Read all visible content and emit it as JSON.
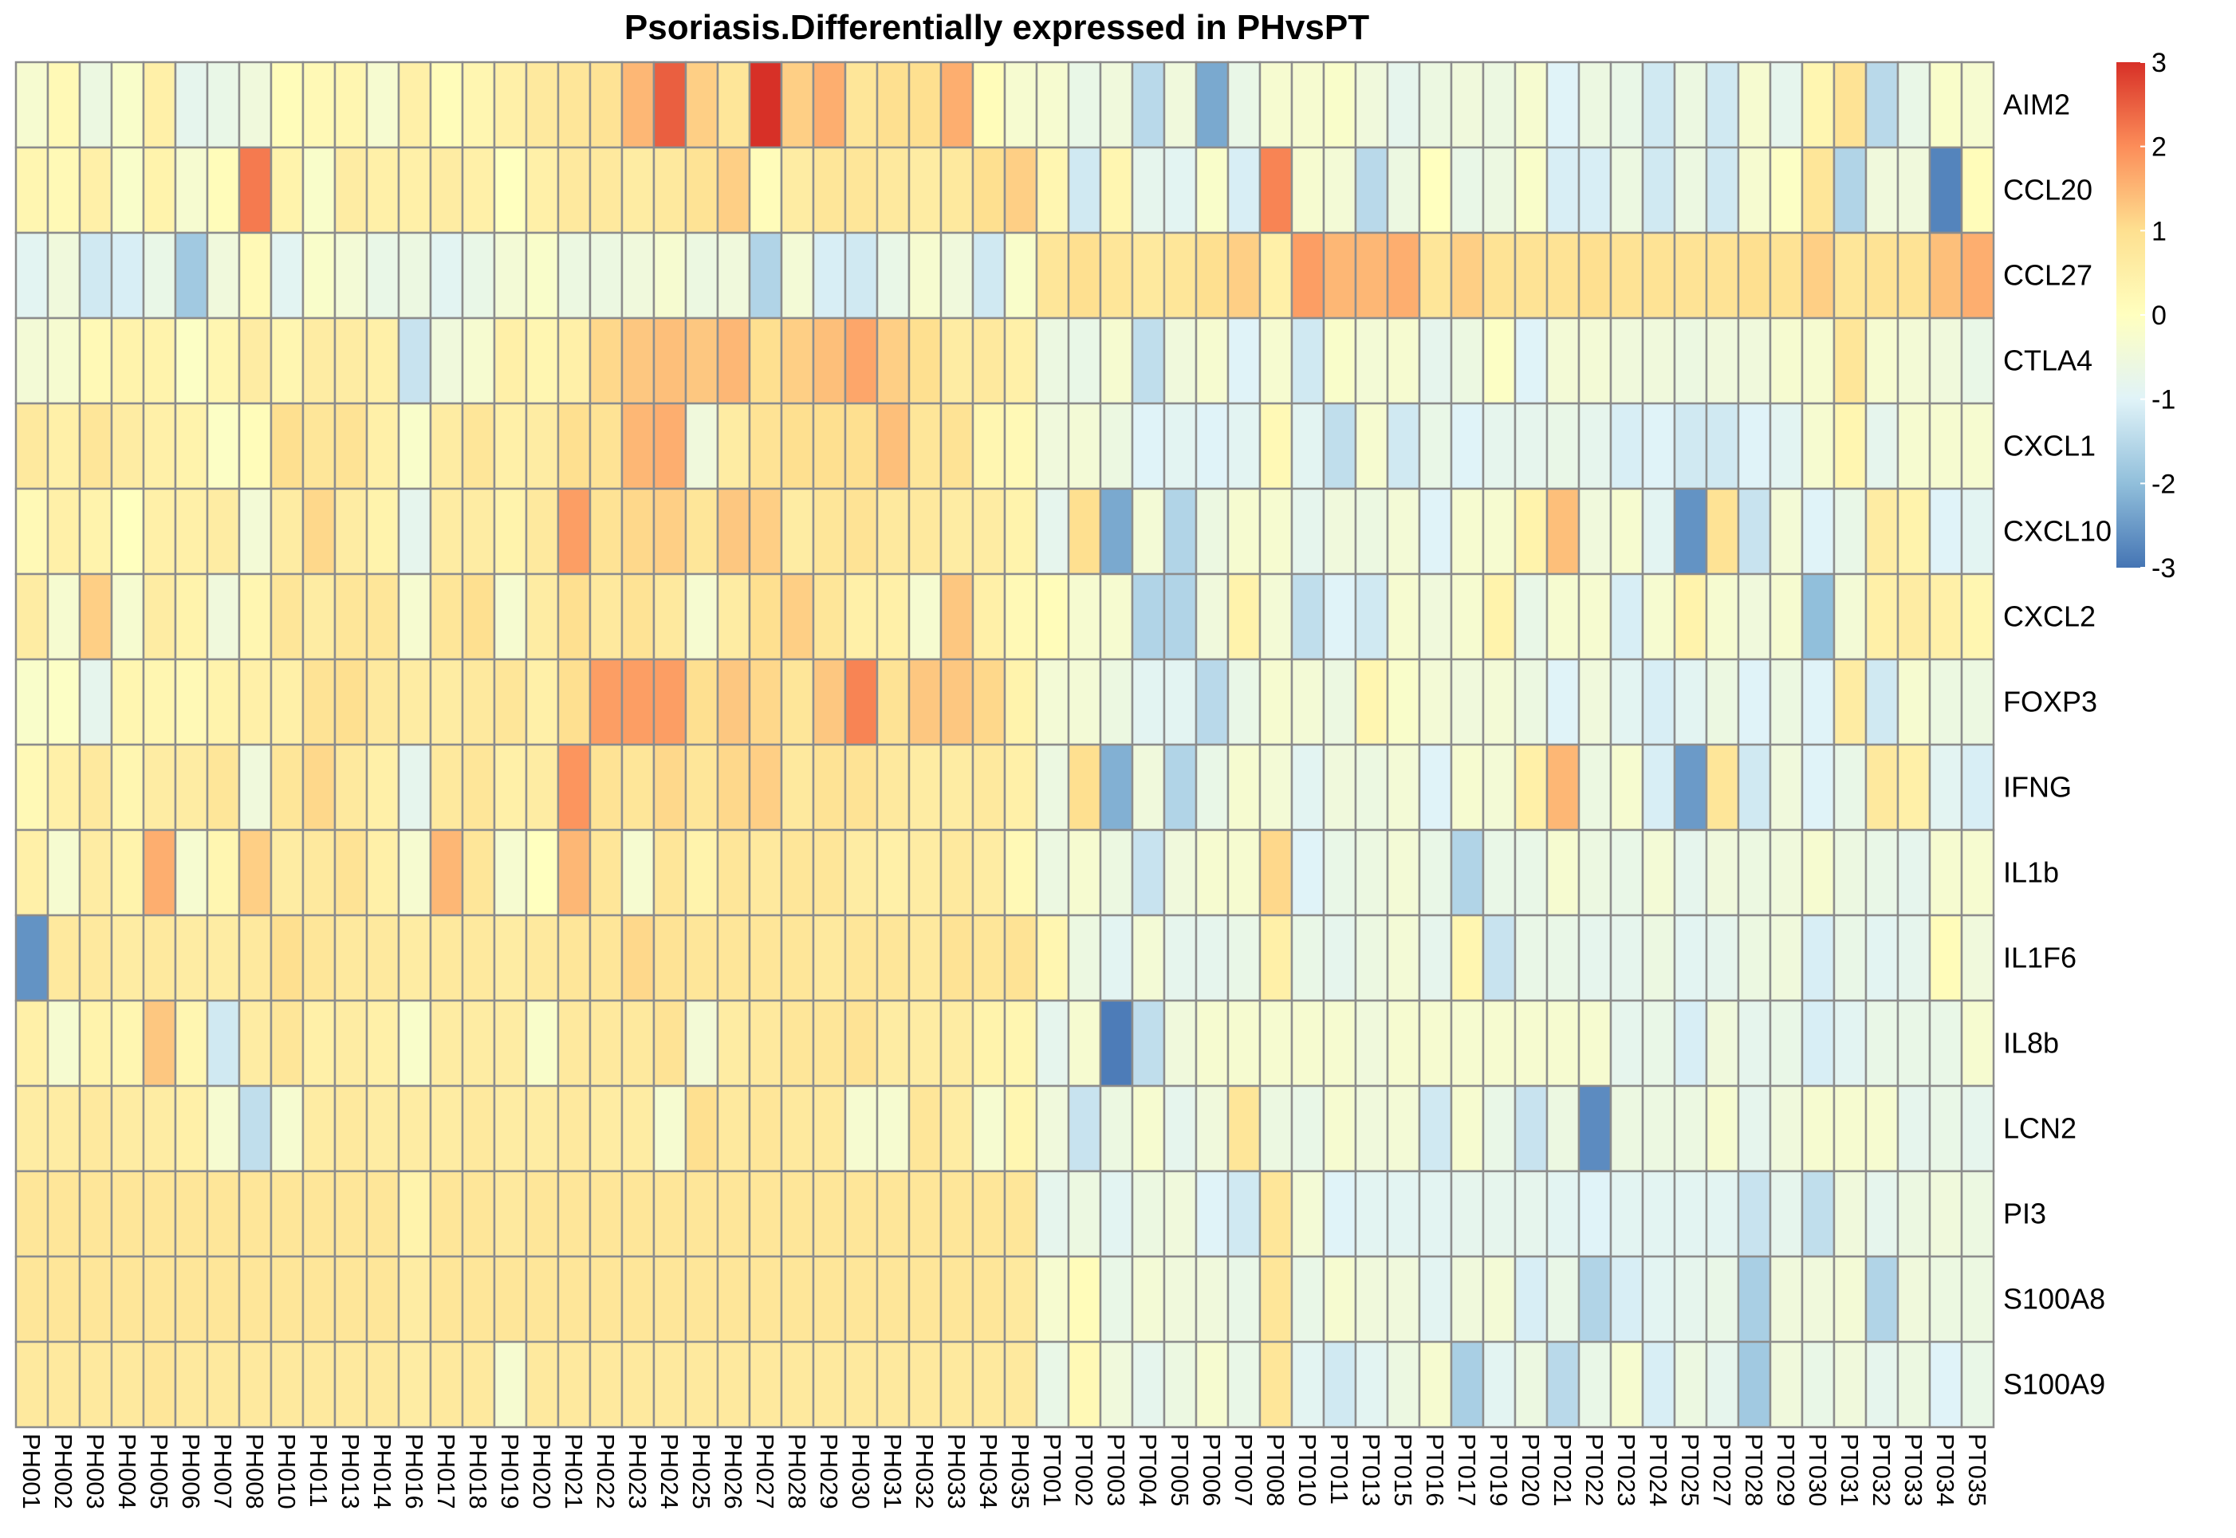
{
  "chart_data": {
    "type": "heatmap",
    "title": "Psoriasis.Differentially expressed in PHvsPT",
    "rows": [
      "AIM2",
      "CCL20",
      "CCL27",
      "CTLA4",
      "CXCL1",
      "CXCL10",
      "CXCL2",
      "FOXP3",
      "IFNG",
      "IL1b",
      "IL1F6",
      "IL8b",
      "LCN2",
      "PI3",
      "S100A8",
      "S100A9"
    ],
    "columns": [
      "PH001",
      "PH002",
      "PH003",
      "PH004",
      "PH005",
      "PH006",
      "PH007",
      "PH008",
      "PH010",
      "PH011",
      "PH013",
      "PH014",
      "PH016",
      "PH017",
      "PH018",
      "PH019",
      "PH020",
      "PH021",
      "PH022",
      "PH023",
      "PH024",
      "PH025",
      "PH026",
      "PH027",
      "PH028",
      "PH029",
      "PH030",
      "PH031",
      "PH032",
      "PH033",
      "PH034",
      "PH035",
      "PT001",
      "PT002",
      "PT003",
      "PT004",
      "PT005",
      "PT006",
      "PT007",
      "PT008",
      "PT010",
      "PT011",
      "PT013",
      "PT015",
      "PT016",
      "PT017",
      "PT019",
      "PT020",
      "PT021",
      "PT022",
      "PT023",
      "PT024",
      "PT025",
      "PT027",
      "PT028",
      "PT029",
      "PT030",
      "PT031",
      "PT032",
      "PT033",
      "PT034",
      "PT035"
    ],
    "color_scale": {
      "min": -3,
      "max": 3,
      "ticks": [
        3,
        2,
        1,
        0,
        -1,
        -2,
        -3
      ],
      "colors": [
        "#4575b4",
        "#91bfdb",
        "#e0f3f8",
        "#ffffbf",
        "#fee090",
        "#fc8d59",
        "#d73027"
      ]
    },
    "values": [
      [
        -0.3,
        0.2,
        -0.6,
        -0.2,
        0.5,
        -0.8,
        -0.7,
        -0.5,
        0.1,
        0.2,
        0.3,
        -0.3,
        0.5,
        0.1,
        0.3,
        0.5,
        0.7,
        0.8,
        0.9,
        1.5,
        2.5,
        1.2,
        0.8,
        3.0,
        1.2,
        1.6,
        0.8,
        1.0,
        1.0,
        1.6,
        0.1,
        -0.3,
        -0.3,
        -0.7,
        -0.5,
        -1.5,
        -0.5,
        -2.3,
        -0.7,
        -0.3,
        -0.3,
        -0.2,
        -0.5,
        -0.8,
        -0.6,
        -0.5,
        -0.6,
        -0.3,
        -1.0,
        -0.6,
        -0.7,
        -1.2,
        -0.6,
        -1.2,
        -0.3,
        -0.8,
        0.3,
        0.9,
        -1.5,
        -0.7,
        -0.2,
        -0.3
      ],
      [
        0.3,
        0.2,
        0.5,
        -0.2,
        0.4,
        -0.3,
        0.1,
        2.2,
        0.4,
        -0.2,
        0.6,
        0.5,
        0.5,
        0.6,
        0.5,
        0.0,
        0.5,
        0.7,
        0.7,
        0.6,
        0.7,
        0.9,
        1.2,
        0.1,
        0.6,
        0.8,
        0.8,
        0.7,
        0.6,
        0.7,
        1.0,
        1.2,
        0.3,
        -1.2,
        0.3,
        -0.8,
        -0.9,
        -0.2,
        -1.1,
        2.1,
        -0.3,
        -0.4,
        -1.5,
        -0.6,
        0.0,
        -0.7,
        -0.6,
        -0.2,
        -1.1,
        -1.1,
        -0.6,
        -1.2,
        -0.6,
        -1.2,
        -0.3,
        -0.1,
        0.8,
        -1.6,
        -0.5,
        -0.5,
        -2.8,
        0.1
      ],
      [
        -0.9,
        -0.5,
        -1.2,
        -1.1,
        -0.7,
        -1.8,
        -0.5,
        0.2,
        -0.9,
        -0.2,
        -0.4,
        -0.7,
        -0.6,
        -0.9,
        -0.7,
        -0.4,
        -0.2,
        -0.6,
        -0.6,
        -0.5,
        -0.3,
        -0.6,
        -0.5,
        -1.6,
        -0.4,
        -1.1,
        -1.2,
        -0.7,
        -0.3,
        -0.5,
        -1.2,
        -0.2,
        0.8,
        1.0,
        0.8,
        0.7,
        0.8,
        1.0,
        1.2,
        0.5,
        1.8,
        1.5,
        1.5,
        1.6,
        0.8,
        1.2,
        0.9,
        0.9,
        0.9,
        1.0,
        0.9,
        0.9,
        0.9,
        0.9,
        1.0,
        0.9,
        1.2,
        0.8,
        0.9,
        0.9,
        1.4,
        1.6
      ],
      [
        -0.4,
        -0.3,
        0.2,
        0.4,
        0.4,
        -0.1,
        0.3,
        0.6,
        0.3,
        0.6,
        0.6,
        0.5,
        -1.3,
        -0.5,
        -0.3,
        0.5,
        0.3,
        0.5,
        1.1,
        1.3,
        1.4,
        1.3,
        1.5,
        1.0,
        1.2,
        1.4,
        1.7,
        1.2,
        1.0,
        0.6,
        0.7,
        0.5,
        -0.6,
        -0.7,
        -0.3,
        -1.4,
        -0.5,
        -0.3,
        -1.0,
        -0.3,
        -1.2,
        -0.2,
        -0.4,
        -0.3,
        -0.8,
        -0.6,
        -0.1,
        -1.0,
        -0.4,
        -0.4,
        -0.5,
        -0.5,
        -0.6,
        -0.5,
        -0.5,
        -0.3,
        -0.3,
        0.8,
        -0.3,
        -0.4,
        -0.5,
        -0.7
      ],
      [
        0.7,
        0.5,
        0.8,
        0.6,
        0.5,
        0.4,
        -0.1,
        0.1,
        1.0,
        0.8,
        0.9,
        0.5,
        -0.2,
        0.6,
        0.8,
        0.5,
        0.6,
        1.0,
        0.9,
        1.5,
        1.6,
        -0.5,
        0.6,
        0.9,
        1.0,
        1.0,
        1.0,
        1.4,
        0.8,
        0.9,
        0.3,
        0.2,
        -0.5,
        -0.4,
        -0.6,
        -1.0,
        -0.9,
        -1.0,
        -0.9,
        0.2,
        -0.9,
        -1.4,
        -0.3,
        -1.2,
        -0.7,
        -1.0,
        -0.8,
        -0.8,
        -0.7,
        -0.8,
        -1.1,
        -1.0,
        -1.2,
        -1.2,
        -1.0,
        -0.9,
        -0.3,
        0.3,
        -0.8,
        -0.3,
        -0.3,
        -0.3
      ],
      [
        0.2,
        0.5,
        0.4,
        0.0,
        0.5,
        0.5,
        0.6,
        -0.4,
        0.6,
        1.1,
        0.6,
        0.4,
        -0.8,
        0.6,
        0.6,
        0.4,
        0.7,
        1.8,
        0.9,
        1.1,
        1.2,
        0.8,
        1.3,
        1.2,
        0.6,
        0.8,
        0.9,
        0.7,
        0.7,
        0.6,
        0.6,
        0.4,
        -0.8,
        1.0,
        -2.3,
        -0.4,
        -1.6,
        -0.6,
        -0.3,
        -0.3,
        -0.8,
        -0.5,
        -0.6,
        -0.4,
        -1.0,
        -0.3,
        -0.3,
        0.4,
        1.4,
        -0.5,
        -0.3,
        -0.9,
        -2.6,
        0.9,
        -1.3,
        -0.4,
        -1.0,
        -0.7,
        0.6,
        0.4,
        -1.0,
        -0.9
      ],
      [
        0.6,
        -0.3,
        1.2,
        -0.3,
        0.6,
        0.4,
        -0.5,
        0.3,
        0.8,
        0.6,
        0.8,
        0.8,
        -0.3,
        0.8,
        1.0,
        -0.3,
        0.6,
        1.0,
        0.7,
        0.9,
        0.7,
        -0.3,
        0.6,
        1.0,
        1.2,
        0.8,
        0.5,
        0.5,
        -0.3,
        1.3,
        0.5,
        0.2,
        0.1,
        -0.3,
        -0.3,
        -1.6,
        -1.6,
        -0.5,
        0.4,
        -0.4,
        -1.4,
        -1.0,
        -1.2,
        -0.3,
        -0.5,
        -0.3,
        0.4,
        -0.7,
        -0.3,
        -0.3,
        -1.1,
        -0.3,
        0.4,
        -0.3,
        -0.5,
        -0.3,
        -2.0,
        -0.4,
        0.5,
        0.6,
        0.5,
        0.3
      ],
      [
        -0.2,
        -0.1,
        -0.8,
        0.3,
        0.3,
        0.2,
        0.4,
        0.5,
        0.5,
        0.9,
        1.0,
        0.7,
        0.6,
        0.6,
        0.7,
        0.8,
        0.5,
        1.0,
        1.8,
        1.8,
        1.8,
        1.0,
        1.3,
        1.1,
        0.8,
        1.3,
        2.1,
        0.9,
        1.3,
        1.3,
        1.1,
        0.4,
        -0.4,
        -0.4,
        -0.6,
        -0.9,
        -0.9,
        -1.5,
        -0.7,
        -0.3,
        -0.4,
        -0.6,
        0.3,
        -0.2,
        -0.4,
        -0.5,
        -0.4,
        -0.6,
        -1.0,
        -0.5,
        -0.9,
        -1.1,
        -0.9,
        -0.6,
        -1.0,
        -0.6,
        -1.0,
        0.6,
        -1.2,
        -0.3,
        -0.6,
        -0.6
      ],
      [
        0.2,
        0.5,
        0.7,
        0.3,
        0.6,
        0.6,
        0.8,
        -0.5,
        0.8,
        1.1,
        0.7,
        0.5,
        -0.8,
        0.7,
        0.8,
        0.5,
        0.6,
        1.9,
        0.9,
        0.8,
        1.1,
        0.8,
        1.1,
        1.2,
        0.7,
        0.9,
        0.9,
        0.7,
        0.6,
        0.6,
        0.7,
        0.5,
        -0.6,
        1.0,
        -2.2,
        -0.5,
        -1.6,
        -0.7,
        -0.3,
        -0.4,
        -0.9,
        -0.5,
        -0.6,
        -0.4,
        -1.0,
        -0.3,
        -0.4,
        0.5,
        1.5,
        -0.6,
        -0.3,
        -1.1,
        -2.5,
        0.8,
        -1.2,
        -0.5,
        -1.0,
        -0.7,
        0.7,
        0.5,
        -0.9,
        -1.1
      ],
      [
        0.5,
        -0.3,
        0.6,
        0.4,
        1.6,
        -0.3,
        0.3,
        1.2,
        0.6,
        0.7,
        0.9,
        0.5,
        -0.3,
        1.5,
        0.8,
        -0.3,
        0.0,
        1.5,
        0.8,
        -0.3,
        0.8,
        0.4,
        0.8,
        0.7,
        0.8,
        0.8,
        0.6,
        0.5,
        0.6,
        0.7,
        0.6,
        0.2,
        -0.6,
        -0.3,
        -0.6,
        -1.3,
        -0.5,
        -0.3,
        -0.3,
        1.1,
        -1.0,
        -0.7,
        -0.6,
        -0.4,
        -0.7,
        -1.6,
        -0.7,
        -0.7,
        -0.3,
        -0.6,
        -0.7,
        -0.4,
        -0.8,
        -0.5,
        -0.6,
        -0.5,
        -0.3,
        -0.6,
        -0.7,
        -0.8,
        -0.3,
        -0.3
      ],
      [
        -2.6,
        0.7,
        0.7,
        0.6,
        0.7,
        0.6,
        0.6,
        0.7,
        1.0,
        0.8,
        0.7,
        0.7,
        0.6,
        0.7,
        0.7,
        0.6,
        0.7,
        0.8,
        0.8,
        1.1,
        0.9,
        0.8,
        0.8,
        0.8,
        0.8,
        0.7,
        0.8,
        0.8,
        0.7,
        0.9,
        0.8,
        0.9,
        0.3,
        -0.6,
        -0.9,
        -0.4,
        -0.8,
        -0.8,
        -0.7,
        0.5,
        -0.7,
        -0.8,
        -0.6,
        -0.4,
        -0.8,
        0.3,
        -1.3,
        -0.7,
        -0.7,
        -0.8,
        -0.8,
        -0.6,
        -0.9,
        -0.8,
        -0.6,
        -0.5,
        -1.1,
        -0.7,
        -0.9,
        -0.8,
        0.1,
        -0.5
      ],
      [
        0.5,
        -0.3,
        0.4,
        0.3,
        1.3,
        0.3,
        -1.2,
        0.6,
        0.8,
        0.5,
        0.6,
        0.5,
        -0.2,
        0.6,
        0.6,
        0.6,
        -0.2,
        0.7,
        0.7,
        0.7,
        0.9,
        -0.4,
        0.6,
        0.7,
        0.8,
        0.8,
        0.9,
        0.6,
        0.6,
        0.6,
        0.4,
        0.3,
        -0.8,
        -0.3,
        -2.9,
        -1.4,
        -0.5,
        -0.3,
        -0.3,
        -0.3,
        -0.3,
        -0.3,
        -0.5,
        -0.3,
        -0.3,
        -0.3,
        -0.3,
        -0.3,
        -0.3,
        -0.3,
        -0.8,
        -0.7,
        -1.1,
        -0.5,
        -0.8,
        -0.7,
        -1.1,
        -0.9,
        -0.7,
        -0.7,
        -0.7,
        -0.3
      ],
      [
        0.6,
        0.6,
        0.7,
        0.6,
        0.6,
        0.5,
        -0.3,
        -1.4,
        -0.3,
        0.6,
        0.7,
        0.6,
        0.6,
        0.6,
        0.7,
        0.6,
        0.6,
        0.7,
        0.6,
        0.6,
        -0.3,
        1.0,
        0.7,
        0.8,
        0.7,
        0.7,
        -0.3,
        -0.3,
        0.8,
        0.6,
        -0.3,
        0.3,
        -0.5,
        -1.3,
        -0.6,
        -0.3,
        -0.8,
        -0.5,
        0.8,
        -0.6,
        -0.7,
        -0.3,
        -0.5,
        -0.4,
        -1.2,
        -0.3,
        -0.7,
        -1.3,
        -0.6,
        -2.7,
        -0.6,
        -0.6,
        -0.6,
        -0.3,
        -0.8,
        -0.5,
        -0.3,
        -0.3,
        -0.3,
        -0.8,
        -0.7,
        -0.8
      ],
      [
        0.8,
        0.8,
        0.8,
        0.8,
        0.8,
        0.8,
        0.8,
        0.8,
        0.8,
        0.8,
        0.8,
        0.8,
        0.4,
        0.8,
        0.8,
        0.7,
        0.8,
        0.8,
        0.8,
        0.8,
        0.8,
        0.8,
        0.8,
        0.8,
        0.8,
        0.8,
        0.8,
        0.8,
        0.8,
        0.8,
        0.8,
        0.8,
        -0.8,
        -0.6,
        -0.9,
        -0.6,
        -0.5,
        -1.0,
        -1.2,
        0.8,
        -0.4,
        -1.0,
        -0.9,
        -0.9,
        -0.9,
        -0.8,
        -0.8,
        -0.8,
        -0.9,
        -1.0,
        -0.9,
        -0.9,
        -0.9,
        -0.9,
        -1.3,
        -0.8,
        -1.4,
        -0.5,
        -0.8,
        -0.6,
        -0.5,
        -0.6
      ],
      [
        0.8,
        0.8,
        0.8,
        0.8,
        0.8,
        0.8,
        0.8,
        0.8,
        0.8,
        0.8,
        0.8,
        0.8,
        0.6,
        0.8,
        0.8,
        0.8,
        0.8,
        0.8,
        0.8,
        0.8,
        0.8,
        0.8,
        0.8,
        0.8,
        0.8,
        0.8,
        0.8,
        0.8,
        0.8,
        0.8,
        0.8,
        0.7,
        -0.3,
        0.1,
        -0.7,
        -0.4,
        -0.5,
        -0.5,
        -0.7,
        0.8,
        -0.7,
        -0.3,
        -0.5,
        -0.5,
        -0.9,
        -0.5,
        -0.4,
        -1.1,
        -0.7,
        -1.6,
        -1.1,
        -0.9,
        -0.8,
        -0.7,
        -1.7,
        -0.5,
        -0.5,
        -0.4,
        -1.6,
        -0.5,
        -0.6,
        -0.6
      ],
      [
        0.7,
        0.7,
        0.7,
        0.7,
        0.8,
        0.7,
        0.7,
        0.7,
        0.7,
        0.7,
        0.7,
        0.7,
        0.6,
        0.7,
        0.7,
        -0.3,
        0.7,
        0.7,
        0.7,
        0.7,
        0.7,
        0.7,
        0.7,
        0.7,
        0.7,
        0.7,
        0.7,
        0.7,
        0.7,
        0.7,
        0.7,
        0.7,
        -0.7,
        0.2,
        -0.5,
        -0.8,
        -0.6,
        -0.3,
        -0.7,
        0.8,
        -0.9,
        -1.2,
        -0.9,
        -0.6,
        -0.3,
        -1.7,
        -0.9,
        -0.6,
        -1.5,
        -0.7,
        -0.3,
        -1.1,
        -0.6,
        -0.8,
        -1.8,
        -0.5,
        -0.7,
        -0.5,
        -0.8,
        -0.6,
        -1.0,
        -0.7
      ]
    ]
  }
}
